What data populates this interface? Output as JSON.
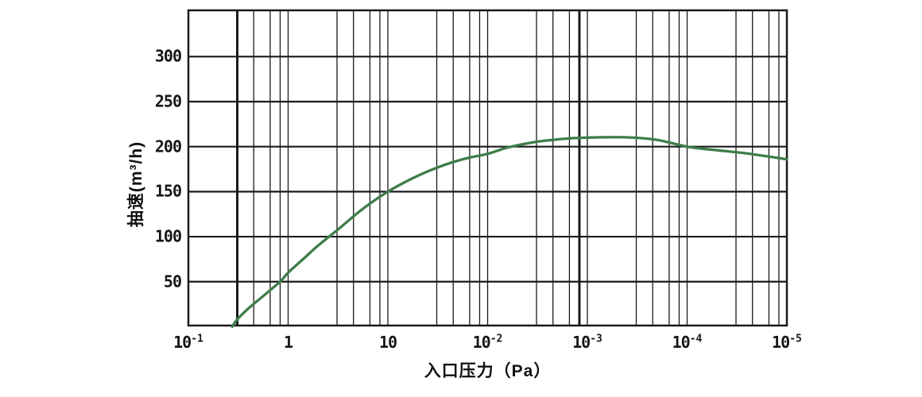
{
  "chart_data": {
    "type": "line",
    "title": "",
    "xlabel": "入口压力（Pa）",
    "ylabel": "抽速(m³/h)",
    "x_scale": "log-6-decades",
    "x_tick_labels": [
      {
        "base": "10",
        "sup": "-1"
      },
      {
        "base": "1",
        "sup": ""
      },
      {
        "base": "10",
        "sup": ""
      },
      {
        "base": "10",
        "sup": "-2"
      },
      {
        "base": "10",
        "sup": "-3"
      },
      {
        "base": "10",
        "sup": "-4"
      },
      {
        "base": "10",
        "sup": "-5"
      }
    ],
    "y_ticks": [
      50,
      100,
      150,
      200,
      250,
      300
    ],
    "ylim": [
      0,
      350
    ],
    "grid": "both",
    "legend": "none",
    "series": [
      {
        "name": "pumping-speed-curve",
        "color": "#3e7d49",
        "points_decade_value": [
          [
            0.44,
            0
          ],
          [
            0.49,
            8
          ],
          [
            0.6,
            20
          ],
          [
            0.75,
            34
          ],
          [
            0.92,
            50
          ],
          [
            1.0,
            60
          ],
          [
            1.15,
            75
          ],
          [
            1.3,
            90
          ],
          [
            1.5,
            108
          ],
          [
            1.75,
            131
          ],
          [
            2.0,
            150
          ],
          [
            2.25,
            165
          ],
          [
            2.5,
            177
          ],
          [
            2.75,
            186
          ],
          [
            3.0,
            192
          ],
          [
            3.2,
            199
          ],
          [
            3.5,
            205.5
          ],
          [
            3.8,
            209
          ],
          [
            4.0,
            210
          ],
          [
            4.1,
            210.3
          ],
          [
            4.4,
            210.3
          ],
          [
            4.7,
            207.5
          ],
          [
            5.0,
            200
          ],
          [
            5.3,
            196
          ],
          [
            5.6,
            192.5
          ],
          [
            6.0,
            186
          ]
        ]
      }
    ]
  },
  "colors": {
    "background": "#ffffff",
    "grid": "#1a1a1a",
    "curve": "#3e7d49",
    "text": "#161616"
  }
}
